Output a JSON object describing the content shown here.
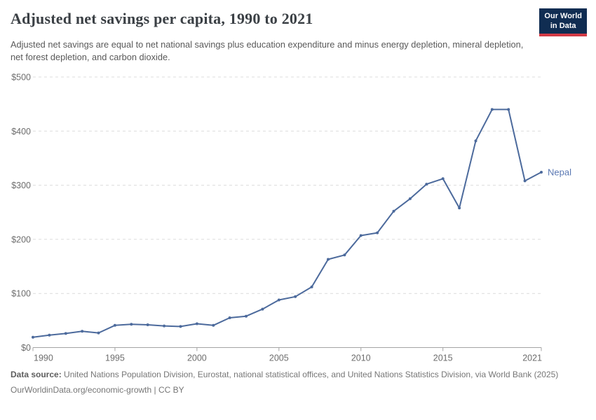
{
  "header": {
    "title": "Adjusted net savings per capita, 1990 to 2021",
    "subtitle": "Adjusted net savings are equal to net national savings plus education expenditure and minus energy depletion, mineral depletion, net forest depletion, and carbon dioxide."
  },
  "logo": {
    "line1": "Our World",
    "line2": "in Data",
    "bg_color": "#102d52",
    "accent_color": "#d23a45"
  },
  "chart_data": {
    "type": "line",
    "title": "Adjusted net savings per capita, 1990 to 2021",
    "xlabel": "",
    "ylabel": "",
    "xlim": [
      1990,
      2021
    ],
    "ylim": [
      0,
      500
    ],
    "grid": "horizontal dashed",
    "legend_position": "end-of-line label",
    "x_ticks": [
      {
        "value": 1990,
        "label": "1990"
      },
      {
        "value": 1995,
        "label": "1995"
      },
      {
        "value": 2000,
        "label": "2000"
      },
      {
        "value": 2005,
        "label": "2005"
      },
      {
        "value": 2010,
        "label": "2010"
      },
      {
        "value": 2015,
        "label": "2015"
      },
      {
        "value": 2021,
        "label": "2021"
      }
    ],
    "y_ticks": [
      {
        "value": 0,
        "label": "$0"
      },
      {
        "value": 100,
        "label": "$100"
      },
      {
        "value": 200,
        "label": "$200"
      },
      {
        "value": 300,
        "label": "$300"
      },
      {
        "value": 400,
        "label": "$400"
      },
      {
        "value": 500,
        "label": "$500"
      }
    ],
    "series": [
      {
        "name": "Nepal",
        "color": "#4c6a9c",
        "label_color": "#5b79b3",
        "x": [
          1990,
          1991,
          1992,
          1993,
          1994,
          1995,
          1996,
          1997,
          1998,
          1999,
          2000,
          2001,
          2002,
          2003,
          2004,
          2005,
          2006,
          2007,
          2008,
          2009,
          2010,
          2011,
          2012,
          2013,
          2014,
          2015,
          2016,
          2017,
          2018,
          2019,
          2020,
          2021
        ],
        "values": [
          19,
          23,
          26,
          30,
          27,
          41,
          43,
          42,
          40,
          39,
          44,
          41,
          55,
          58,
          71,
          88,
          94,
          112,
          163,
          171,
          207,
          212,
          252,
          275,
          302,
          312,
          258,
          382,
          440,
          440,
          308,
          324
        ]
      }
    ],
    "grid_color": "#dcdcdc",
    "axis_color": "#a3a3a3",
    "tick_label_color": "#6d6d6d"
  },
  "footer": {
    "datasource_label": "Data source:",
    "datasource_text": " United Nations Population Division, Eurostat, national statistical offices, and United Nations Statistics Division, via World Bank (2025)",
    "link_text": "OurWorldinData.org/economic-growth",
    "license_text": " | CC BY"
  }
}
